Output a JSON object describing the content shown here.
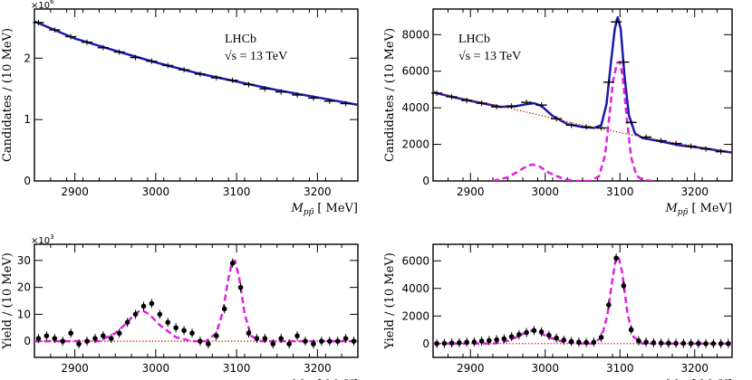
{
  "chart_data": [
    {
      "id": "tl",
      "type": "line",
      "ylabel": "Candidates / (10 MeV)",
      "xlabel": "M_pp̄ [MeV]",
      "xlabel_main": "M",
      "xlabel_sub": "pp̄",
      "xlabel_unit": "[ MeV]",
      "xlim": [
        2850,
        3250
      ],
      "ylim": [
        0,
        2.8
      ],
      "yticks": [
        0,
        1,
        2
      ],
      "ytick_labels": [
        "0",
        "1",
        "2"
      ],
      "xticks": [
        2900,
        3000,
        3100,
        3200
      ],
      "xtick_labels": [
        "2900",
        "3000",
        "3100",
        "3200"
      ],
      "multiplier": "×10",
      "multiplier_exp": "6",
      "label_line1": "LHCb",
      "label_line2": "√s = 13 TeV",
      "series": [
        {
          "name": "fit",
          "style": "solid",
          "color": "#1a1ab0",
          "x": [
            2850,
            2900,
            2950,
            3000,
            3050,
            3100,
            3150,
            3200,
            3250
          ],
          "values": [
            2.6,
            2.32,
            2.12,
            1.93,
            1.76,
            1.62,
            1.48,
            1.36,
            1.24
          ]
        },
        {
          "name": "data",
          "style": "points",
          "x": [
            2855,
            2875,
            2895,
            2915,
            2935,
            2955,
            2975,
            2995,
            3015,
            3035,
            3055,
            3075,
            3095,
            3115,
            3135,
            3155,
            3175,
            3195,
            3215,
            3235
          ],
          "values": [
            2.58,
            2.46,
            2.35,
            2.26,
            2.17,
            2.1,
            2.01,
            1.95,
            1.88,
            1.81,
            1.74,
            1.68,
            1.64,
            1.57,
            1.5,
            1.45,
            1.4,
            1.35,
            1.3,
            1.26
          ]
        }
      ]
    },
    {
      "id": "tr",
      "type": "line",
      "ylabel": "Candidates / (10 MeV)",
      "xlabel": "M_pp̄ [MeV]",
      "xlabel_main": "M",
      "xlabel_sub": "pp̄",
      "xlabel_unit": "[ MeV]",
      "xlim": [
        2850,
        3250
      ],
      "ylim": [
        0,
        9400
      ],
      "yticks": [
        0,
        2000,
        4000,
        6000,
        8000
      ],
      "ytick_labels": [
        "0",
        "2000",
        "4000",
        "6000",
        "8000"
      ],
      "xticks": [
        2900,
        3000,
        3100,
        3200
      ],
      "xtick_labels": [
        "2900",
        "3000",
        "3100",
        "3200"
      ],
      "label_line1": "LHCb",
      "label_line2": "√s = 13 TeV",
      "series": [
        {
          "name": "total fit",
          "style": "solid",
          "color": "#1a1ab0",
          "x": [
            2850,
            2880,
            2910,
            2940,
            2960,
            2975,
            2985,
            2995,
            3010,
            3030,
            3050,
            3065,
            3075,
            3082,
            3088,
            3093,
            3097,
            3101,
            3106,
            3112,
            3120,
            3130,
            3150,
            3180,
            3210,
            3250
          ],
          "values": [
            4850,
            4550,
            4300,
            4050,
            4080,
            4200,
            4250,
            4100,
            3550,
            3100,
            2950,
            2900,
            3050,
            4200,
            6500,
            8300,
            8950,
            8300,
            5800,
            3600,
            2600,
            2350,
            2200,
            1950,
            1800,
            1550
          ]
        },
        {
          "name": "background",
          "style": "dotted",
          "color": "#cc2200",
          "x": [
            2850,
            2950,
            3050,
            3150,
            3250
          ],
          "values": [
            4850,
            4000,
            3050,
            2250,
            1550
          ]
        },
        {
          "name": "signal",
          "style": "dashed",
          "color": "#e020e0",
          "x": [
            2930,
            2950,
            2965,
            2975,
            2983,
            2992,
            3005,
            3025,
            3040,
            3060,
            3072,
            3080,
            3086,
            3091,
            3096,
            3100,
            3104,
            3109,
            3115,
            3122,
            3130,
            3145
          ],
          "values": [
            0,
            200,
            550,
            800,
            900,
            800,
            450,
            100,
            0,
            0,
            250,
            1400,
            3600,
            5500,
            6450,
            6500,
            5600,
            3500,
            1300,
            300,
            50,
            0
          ]
        },
        {
          "name": "data",
          "style": "points",
          "x": [
            2855,
            2875,
            2895,
            2915,
            2935,
            2955,
            2975,
            2995,
            3015,
            3035,
            3055,
            3075,
            3085,
            3095,
            3105,
            3115,
            3135,
            3155,
            3175,
            3195,
            3215,
            3235
          ],
          "values": [
            4800,
            4600,
            4400,
            4250,
            4050,
            4100,
            4300,
            4150,
            3400,
            3050,
            2950,
            2900,
            5400,
            8700,
            6500,
            3200,
            2400,
            2200,
            2050,
            1900,
            1750,
            1600
          ]
        }
      ]
    },
    {
      "id": "bl",
      "type": "line",
      "ylabel": "Yield / (10 MeV)",
      "xlabel": "M_pp̄ [MeV]",
      "xlabel_main": "M",
      "xlabel_sub": "pp̄",
      "xlabel_unit": "[ MeV]",
      "xlim": [
        2850,
        3250
      ],
      "ylim": [
        -6,
        36
      ],
      "yticks": [
        0,
        10,
        20,
        30
      ],
      "ytick_labels": [
        "0",
        "10",
        "20",
        "30"
      ],
      "xticks": [
        2900,
        3000,
        3100,
        3200
      ],
      "xtick_labels": [
        "2900",
        "3000",
        "3100",
        "3200"
      ],
      "multiplier": "×10",
      "multiplier_exp": "3",
      "series": [
        {
          "name": "zero",
          "style": "dotted",
          "color": "#cc2200",
          "x": [
            2850,
            3250
          ],
          "values": [
            0,
            0
          ]
        },
        {
          "name": "signal",
          "style": "dashed",
          "color": "#e020e0",
          "x": [
            2850,
            2930,
            2950,
            2965,
            2975,
            2983,
            2992,
            3005,
            3025,
            3045,
            3062,
            3075,
            3083,
            3089,
            3094,
            3098,
            3103,
            3110,
            3118,
            3130,
            3250
          ],
          "values": [
            0,
            0,
            3,
            7,
            10.5,
            11.5,
            10,
            6,
            1.5,
            0,
            0,
            3,
            11,
            22,
            29,
            30,
            24,
            10,
            2,
            0,
            0
          ]
        },
        {
          "name": "data",
          "style": "points",
          "x": [
            2855,
            2865,
            2875,
            2885,
            2895,
            2905,
            2915,
            2925,
            2935,
            2945,
            2955,
            2965,
            2975,
            2985,
            2995,
            3005,
            3015,
            3025,
            3035,
            3045,
            3055,
            3065,
            3075,
            3085,
            3095,
            3105,
            3115,
            3125,
            3135,
            3145,
            3155,
            3165,
            3175,
            3185,
            3195,
            3205,
            3215,
            3225,
            3235,
            3245
          ],
          "values": [
            1,
            2,
            1,
            0,
            3,
            -1,
            0,
            1,
            2,
            1,
            3,
            7,
            10,
            13,
            14,
            10,
            7,
            5,
            4,
            3,
            0,
            -1,
            2,
            12,
            29,
            20,
            3,
            1,
            1,
            -1,
            1,
            -1,
            2,
            0,
            -1,
            0,
            0,
            0,
            1,
            0
          ]
        }
      ]
    },
    {
      "id": "br",
      "type": "line",
      "ylabel": "Yield / (10 MeV)",
      "xlabel": "M_pp̄ [MeV]",
      "xlabel_main": "M",
      "xlabel_sub": "pp̄",
      "xlabel_unit": "[ MeV]",
      "xlim": [
        2850,
        3250
      ],
      "ylim": [
        -1000,
        7200
      ],
      "yticks": [
        0,
        2000,
        4000,
        6000
      ],
      "ytick_labels": [
        "0",
        "2000",
        "4000",
        "6000"
      ],
      "xticks": [
        2900,
        3000,
        3100,
        3200
      ],
      "xtick_labels": [
        "2900",
        "3000",
        "3100",
        "3200"
      ],
      "series": [
        {
          "name": "zero",
          "style": "dotted",
          "color": "#cc2200",
          "x": [
            2850,
            3250
          ],
          "values": [
            0,
            0
          ]
        },
        {
          "name": "signal",
          "style": "dashed",
          "color": "#e020e0",
          "x": [
            2850,
            2930,
            2950,
            2965,
            2975,
            2983,
            2992,
            3005,
            3025,
            3045,
            3062,
            3075,
            3083,
            3089,
            3094,
            3098,
            3103,
            3110,
            3118,
            3130,
            3250
          ],
          "values": [
            0,
            0,
            200,
            550,
            850,
            950,
            800,
            450,
            100,
            0,
            0,
            400,
            2000,
            4300,
            6000,
            6300,
            5200,
            2200,
            500,
            0,
            0
          ]
        },
        {
          "name": "data",
          "style": "points",
          "x": [
            2855,
            2865,
            2875,
            2885,
            2895,
            2905,
            2915,
            2925,
            2935,
            2945,
            2955,
            2965,
            2975,
            2985,
            2995,
            3005,
            3015,
            3025,
            3035,
            3045,
            3055,
            3065,
            3075,
            3085,
            3095,
            3105,
            3115,
            3125,
            3135,
            3145,
            3155,
            3165,
            3175,
            3185,
            3195,
            3205,
            3215,
            3225,
            3235,
            3245
          ],
          "values": [
            0,
            20,
            40,
            60,
            100,
            120,
            180,
            220,
            280,
            350,
            500,
            650,
            800,
            950,
            850,
            600,
            400,
            250,
            150,
            100,
            80,
            100,
            450,
            2800,
            6200,
            4200,
            1000,
            200,
            100,
            60,
            40,
            30,
            20,
            20,
            10,
            10,
            0,
            0,
            0,
            0
          ]
        }
      ]
    }
  ]
}
